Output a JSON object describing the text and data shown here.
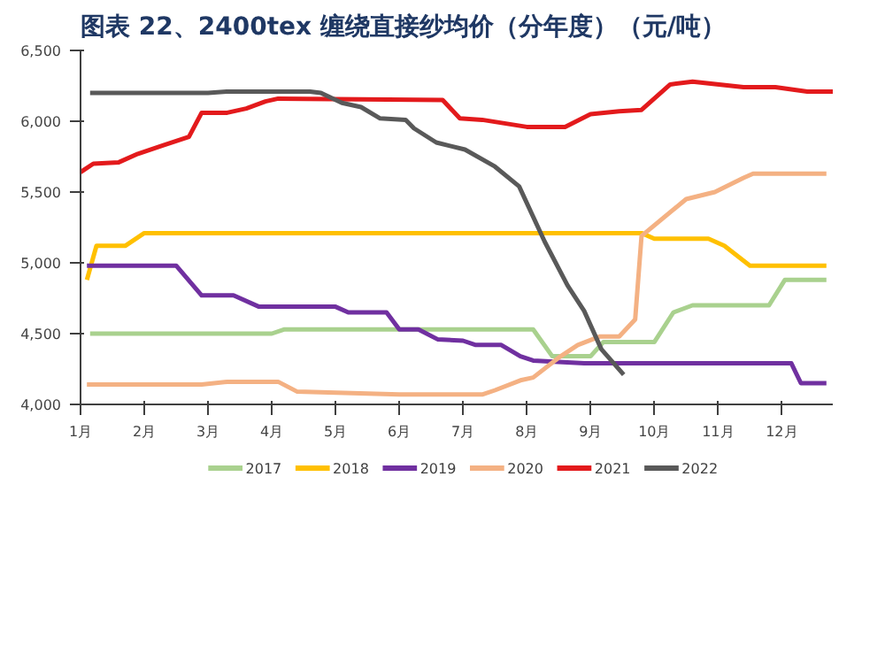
{
  "chart_data": {
    "type": "line",
    "title": "图表 22、2400tex 缠绕直接纱均价（分年度）（元/吨）",
    "xlim": [
      1,
      12.8
    ],
    "xticks": [
      {
        "value": 1,
        "label": "1月"
      },
      {
        "value": 2,
        "label": "2月"
      },
      {
        "value": 3,
        "label": "3月"
      },
      {
        "value": 4,
        "label": "4月"
      },
      {
        "value": 5,
        "label": "5月"
      },
      {
        "value": 6,
        "label": "6月"
      },
      {
        "value": 7,
        "label": "7月"
      },
      {
        "value": 8,
        "label": "8月"
      },
      {
        "value": 9,
        "label": "9月"
      },
      {
        "value": 10,
        "label": "10月"
      },
      {
        "value": 11,
        "label": "11月"
      },
      {
        "value": 12,
        "label": "12月"
      }
    ],
    "ylim": [
      4000,
      6500
    ],
    "yticks": [
      {
        "value": 4000,
        "label": "4,000"
      },
      {
        "value": 4500,
        "label": "4,500"
      },
      {
        "value": 5000,
        "label": "5,000"
      },
      {
        "value": 5500,
        "label": "5,500"
      },
      {
        "value": 6000,
        "label": "6,000"
      },
      {
        "value": 6500,
        "label": "6,500"
      }
    ],
    "grid": false,
    "legend": "bottom",
    "marker": "none",
    "line_style": "solid",
    "series": [
      {
        "name": "2017",
        "color": "#a9d18e",
        "x": [
          1.15,
          4.0,
          4.2,
          8.1,
          8.4,
          9.0,
          9.2,
          10.0,
          10.3,
          10.6,
          11.8,
          12.05,
          12.7
        ],
        "values": [
          4500,
          4500,
          4530,
          4530,
          4340,
          4340,
          4440,
          4440,
          4650,
          4700,
          4700,
          4880,
          4880
        ]
      },
      {
        "name": "2018",
        "color": "#ffc000",
        "x": [
          1.1,
          1.25,
          1.7,
          2.0,
          9.8,
          10.0,
          10.85,
          11.1,
          11.5,
          12.7
        ],
        "values": [
          4880,
          5120,
          5120,
          5210,
          5210,
          5170,
          5170,
          5120,
          4980,
          4980
        ]
      },
      {
        "name": "2019",
        "color": "#7030a0",
        "x": [
          1.1,
          2.5,
          2.9,
          3.4,
          3.8,
          5.0,
          5.2,
          5.8,
          6.0,
          6.3,
          6.6,
          7.0,
          7.2,
          7.6,
          7.9,
          8.1,
          8.9,
          12.15,
          12.3,
          12.7
        ],
        "values": [
          4980,
          4980,
          4770,
          4770,
          4690,
          4690,
          4650,
          4650,
          4530,
          4530,
          4460,
          4450,
          4420,
          4420,
          4340,
          4310,
          4290,
          4290,
          4150,
          4150
        ]
      },
      {
        "name": "2020",
        "color": "#f4b183",
        "x": [
          1.1,
          2.9,
          3.3,
          4.1,
          4.4,
          6.0,
          7.3,
          7.5,
          7.9,
          8.1,
          8.5,
          8.8,
          9.15,
          9.45,
          9.7,
          9.8,
          10.5,
          10.95,
          11.4,
          11.55,
          12.7
        ],
        "values": [
          4140,
          4140,
          4160,
          4160,
          4090,
          4070,
          4070,
          4100,
          4170,
          4190,
          4330,
          4420,
          4480,
          4480,
          4600,
          5190,
          5450,
          5500,
          5600,
          5630,
          5630
        ]
      },
      {
        "name": "2021",
        "color": "#e31a1c",
        "x": [
          1.0,
          1.2,
          1.6,
          1.9,
          2.3,
          2.7,
          2.9,
          3.3,
          3.6,
          3.9,
          4.1,
          6.68,
          6.95,
          7.3,
          8.0,
          8.6,
          9.0,
          9.45,
          9.8,
          10.25,
          10.6,
          11.4,
          11.9,
          12.4,
          12.8
        ],
        "values": [
          5640,
          5700,
          5710,
          5770,
          5830,
          5890,
          6060,
          6060,
          6090,
          6140,
          6160,
          6150,
          6020,
          6010,
          5960,
          5960,
          6050,
          6070,
          6080,
          6260,
          6280,
          6240,
          6240,
          6210,
          6210
        ]
      },
      {
        "name": "2022",
        "color": "#595959",
        "x": [
          1.15,
          3.0,
          3.3,
          4.6,
          4.77,
          5.1,
          5.4,
          5.7,
          6.1,
          6.23,
          6.58,
          7.03,
          7.5,
          7.88,
          8.28,
          8.64,
          8.9,
          9.17,
          9.52
        ],
        "values": [
          6200,
          6200,
          6210,
          6210,
          6200,
          6130,
          6100,
          6020,
          6010,
          5950,
          5850,
          5800,
          5680,
          5540,
          5150,
          4840,
          4660,
          4390,
          4210
        ]
      }
    ]
  }
}
